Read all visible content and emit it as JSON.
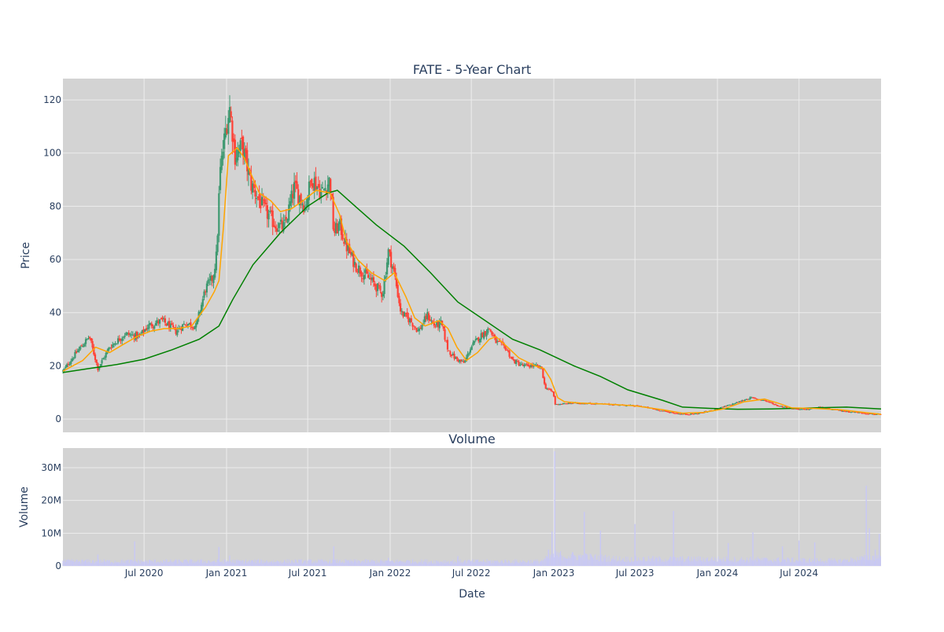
{
  "chart_data": [
    {
      "type": "candlestick",
      "title": "FATE - 5-Year Chart",
      "xlabel": "",
      "ylabel": "Price",
      "x_range": [
        "2020-01-02",
        "2024-12-31"
      ],
      "ylim": [
        -5,
        128
      ],
      "y_ticks": [
        0,
        20,
        40,
        60,
        80,
        100,
        120
      ],
      "x_gridlines": [
        "2020-07-01",
        "2021-01-01",
        "2021-07-01",
        "2022-01-01",
        "2022-07-01",
        "2023-01-01",
        "2023-07-01",
        "2024-01-01",
        "2024-07-01"
      ],
      "grid": true,
      "colors": {
        "plot_bg": "#d3d3d3",
        "grid": "#ececec",
        "increasing": "#3d9970",
        "decreasing": "#ff4136",
        "ma_short": "#ffa500",
        "ma_long": "#008000",
        "text": "#2a3f5f"
      },
      "series": [
        {
          "kind": "close_path",
          "points": [
            [
              "2020-01-02",
              18
            ],
            [
              "2020-02-01",
              25
            ],
            [
              "2020-03-01",
              31
            ],
            [
              "2020-03-20",
              19
            ],
            [
              "2020-04-15",
              27
            ],
            [
              "2020-05-20",
              32
            ],
            [
              "2020-06-20",
              31
            ],
            [
              "2020-07-10",
              35
            ],
            [
              "2020-08-10",
              37
            ],
            [
              "2020-09-10",
              33
            ],
            [
              "2020-10-01",
              36
            ],
            [
              "2020-10-25",
              35
            ],
            [
              "2020-11-15",
              49
            ],
            [
              "2020-12-01",
              53
            ],
            [
              "2020-12-10",
              62
            ],
            [
              "2020-12-17",
              92
            ],
            [
              "2020-12-31",
              110
            ],
            [
              "2021-01-08",
              117
            ],
            [
              "2021-01-20",
              99
            ],
            [
              "2021-02-05",
              103
            ],
            [
              "2021-02-25",
              88
            ],
            [
              "2021-03-10",
              84
            ],
            [
              "2021-03-25",
              79
            ],
            [
              "2021-04-20",
              73
            ],
            [
              "2021-05-10",
              72
            ],
            [
              "2021-06-01",
              87
            ],
            [
              "2021-06-25",
              80
            ],
            [
              "2021-07-10",
              91
            ],
            [
              "2021-08-01",
              85
            ],
            [
              "2021-08-20",
              90
            ],
            [
              "2021-08-28",
              70
            ],
            [
              "2021-09-10",
              73
            ],
            [
              "2021-09-25",
              65
            ],
            [
              "2021-10-15",
              58
            ],
            [
              "2021-11-01",
              55
            ],
            [
              "2021-11-20",
              52
            ],
            [
              "2021-12-15",
              47
            ],
            [
              "2021-12-28",
              63
            ],
            [
              "2022-01-10",
              55
            ],
            [
              "2022-01-25",
              40
            ],
            [
              "2022-02-15",
              37
            ],
            [
              "2022-03-05",
              33
            ],
            [
              "2022-03-25",
              39
            ],
            [
              "2022-04-10",
              35
            ],
            [
              "2022-04-25",
              36
            ],
            [
              "2022-05-10",
              26
            ],
            [
              "2022-05-25",
              23
            ],
            [
              "2022-06-15",
              21
            ],
            [
              "2022-06-30",
              27
            ],
            [
              "2022-07-20",
              31
            ],
            [
              "2022-08-10",
              34
            ],
            [
              "2022-08-25",
              29
            ],
            [
              "2022-09-15",
              27
            ],
            [
              "2022-10-01",
              22
            ],
            [
              "2022-10-25",
              20
            ],
            [
              "2022-11-20",
              20
            ],
            [
              "2022-12-05",
              19
            ],
            [
              "2022-12-12",
              12
            ],
            [
              "2022-12-31",
              10
            ],
            [
              "2023-01-03",
              5.5
            ],
            [
              "2023-02-15",
              6
            ],
            [
              "2023-04-01",
              5.8
            ],
            [
              "2023-06-01",
              5.3
            ],
            [
              "2023-07-15",
              4.8
            ],
            [
              "2023-09-01",
              3
            ],
            [
              "2023-10-15",
              1.8
            ],
            [
              "2023-11-15",
              2
            ],
            [
              "2023-12-15",
              3
            ],
            [
              "2024-02-01",
              5.5
            ],
            [
              "2024-03-15",
              8
            ],
            [
              "2024-04-15",
              7
            ],
            [
              "2024-05-15",
              5
            ],
            [
              "2024-06-15",
              4
            ],
            [
              "2024-07-15",
              3.5
            ],
            [
              "2024-08-15",
              4.5
            ],
            [
              "2024-09-15",
              3.5
            ],
            [
              "2024-11-01",
              2.6
            ],
            [
              "2024-12-31",
              1.6
            ]
          ]
        },
        {
          "name": "",
          "kind": "ma_short",
          "points": [
            [
              "2020-01-02",
              18
            ],
            [
              "2020-02-15",
              22
            ],
            [
              "2020-03-15",
              27
            ],
            [
              "2020-04-15",
              25
            ],
            [
              "2020-05-15",
              28
            ],
            [
              "2020-06-15",
              31
            ],
            [
              "2020-07-15",
              33
            ],
            [
              "2020-08-15",
              34
            ],
            [
              "2020-09-15",
              34
            ],
            [
              "2020-10-15",
              35
            ],
            [
              "2020-11-15",
              42
            ],
            [
              "2020-12-05",
              48
            ],
            [
              "2020-12-15",
              52
            ],
            [
              "2020-12-25",
              72
            ],
            [
              "2021-01-05",
              99
            ],
            [
              "2021-01-25",
              102
            ],
            [
              "2021-02-10",
              98
            ],
            [
              "2021-02-25",
              92
            ],
            [
              "2021-03-15",
              85
            ],
            [
              "2021-04-10",
              82
            ],
            [
              "2021-05-01",
              78
            ],
            [
              "2021-05-25",
              79
            ],
            [
              "2021-06-20",
              82
            ],
            [
              "2021-07-20",
              86
            ],
            [
              "2021-08-20",
              85
            ],
            [
              "2021-09-10",
              77
            ],
            [
              "2021-09-25",
              67
            ],
            [
              "2021-10-20",
              60
            ],
            [
              "2021-11-20",
              55
            ],
            [
              "2021-12-20",
              52
            ],
            [
              "2022-01-10",
              55
            ],
            [
              "2022-02-05",
              46
            ],
            [
              "2022-02-25",
              38
            ],
            [
              "2022-03-20",
              35
            ],
            [
              "2022-04-20",
              37
            ],
            [
              "2022-05-10",
              34
            ],
            [
              "2022-05-30",
              27
            ],
            [
              "2022-06-20",
              22
            ],
            [
              "2022-07-15",
              25
            ],
            [
              "2022-08-10",
              30
            ],
            [
              "2022-08-25",
              31
            ],
            [
              "2022-09-20",
              27
            ],
            [
              "2022-10-15",
              23
            ],
            [
              "2022-11-20",
              20
            ],
            [
              "2022-12-10",
              19
            ],
            [
              "2022-12-25",
              15
            ],
            [
              "2023-01-10",
              8
            ],
            [
              "2023-01-25",
              6.5
            ],
            [
              "2023-03-01",
              6
            ],
            [
              "2023-05-01",
              5.6
            ],
            [
              "2023-07-01",
              5
            ],
            [
              "2023-09-01",
              3.5
            ],
            [
              "2023-10-15",
              2.2
            ],
            [
              "2023-12-01",
              2.5
            ],
            [
              "2024-01-15",
              3.8
            ],
            [
              "2024-03-01",
              6.5
            ],
            [
              "2024-04-15",
              7.5
            ],
            [
              "2024-05-15",
              6
            ],
            [
              "2024-06-15",
              4.2
            ],
            [
              "2024-08-01",
              4
            ],
            [
              "2024-10-01",
              3.5
            ],
            [
              "2024-12-31",
              1.8
            ]
          ]
        },
        {
          "name": "",
          "kind": "ma_long",
          "points": [
            [
              "2020-01-02",
              17.5
            ],
            [
              "2020-03-01",
              19
            ],
            [
              "2020-05-01",
              20.5
            ],
            [
              "2020-07-01",
              22.5
            ],
            [
              "2020-09-01",
              26
            ],
            [
              "2020-11-01",
              30
            ],
            [
              "2020-12-15",
              35
            ],
            [
              "2021-01-15",
              45
            ],
            [
              "2021-03-01",
              58
            ],
            [
              "2021-05-01",
              70
            ],
            [
              "2021-07-01",
              80
            ],
            [
              "2021-08-15",
              85
            ],
            [
              "2021-09-05",
              86
            ],
            [
              "2021-10-15",
              80
            ],
            [
              "2021-12-01",
              73
            ],
            [
              "2022-02-01",
              65
            ],
            [
              "2022-04-01",
              55
            ],
            [
              "2022-06-01",
              44
            ],
            [
              "2022-08-01",
              37
            ],
            [
              "2022-10-01",
              30
            ],
            [
              "2022-12-01",
              26
            ],
            [
              "2023-02-15",
              20
            ],
            [
              "2023-04-15",
              16
            ],
            [
              "2023-06-15",
              11
            ],
            [
              "2023-09-01",
              7
            ],
            [
              "2023-10-15",
              4.5
            ],
            [
              "2023-12-15",
              4
            ],
            [
              "2024-02-15",
              3.7
            ],
            [
              "2024-05-01",
              3.8
            ],
            [
              "2024-08-01",
              4.2
            ],
            [
              "2024-10-15",
              4.5
            ],
            [
              "2024-12-31",
              3.8
            ]
          ]
        }
      ]
    },
    {
      "type": "bar",
      "title": "Volume",
      "xlabel": "Date",
      "ylabel": "Volume",
      "ylim": [
        0,
        36000000
      ],
      "y_ticks": [
        0,
        10000000,
        20000000,
        30000000
      ],
      "bar_color": "#c8c8f5",
      "spikes": [
        [
          "2020-03-20",
          3500000
        ],
        [
          "2020-06-10",
          7500000
        ],
        [
          "2020-12-15",
          5800000
        ],
        [
          "2021-01-08",
          3200000
        ],
        [
          "2021-08-28",
          6000000
        ],
        [
          "2021-12-28",
          2500000
        ],
        [
          "2022-06-01",
          3000000
        ],
        [
          "2022-12-20",
          5000000
        ],
        [
          "2022-12-28",
          10500000
        ],
        [
          "2023-01-03",
          35000000
        ],
        [
          "2023-03-10",
          16500000
        ],
        [
          "2023-04-15",
          10800000
        ],
        [
          "2023-07-01",
          12800000
        ],
        [
          "2023-08-10",
          3000000
        ],
        [
          "2023-09-25",
          16800000
        ],
        [
          "2024-01-25",
          7000000
        ],
        [
          "2024-03-20",
          10300000
        ],
        [
          "2024-05-25",
          6000000
        ],
        [
          "2024-07-01",
          7800000
        ],
        [
          "2024-08-05",
          7200000
        ],
        [
          "2024-11-28",
          24500000
        ],
        [
          "2024-12-05",
          11500000
        ],
        [
          "2024-12-18",
          5000000
        ],
        [
          "2024-12-27",
          9800000
        ]
      ],
      "baseline_levels": [
        [
          "2020-01-02",
          1500000
        ],
        [
          "2022-12-01",
          1500000
        ],
        [
          "2023-01-05",
          3500000
        ],
        [
          "2023-06-01",
          2200000
        ],
        [
          "2024-01-01",
          2200000
        ],
        [
          "2024-10-01",
          1700000
        ],
        [
          "2024-12-31",
          3000000
        ]
      ]
    }
  ],
  "labels": {
    "price_title": "FATE - 5-Year Chart",
    "volume_title": "Volume",
    "price_ylabel": "Price",
    "volume_ylabel": "Volume",
    "xlabel": "Date",
    "price_yticks": [
      "0",
      "20",
      "40",
      "60",
      "80",
      "100",
      "120"
    ],
    "volume_yticks": [
      "0",
      "10M",
      "20M",
      "30M"
    ],
    "xticks": [
      "Jul 2020",
      "Jan 2021",
      "Jul 2021",
      "Jan 2022",
      "Jul 2022",
      "Jan 2023",
      "Jul 2023",
      "Jan 2024",
      "Jul 2024"
    ]
  }
}
